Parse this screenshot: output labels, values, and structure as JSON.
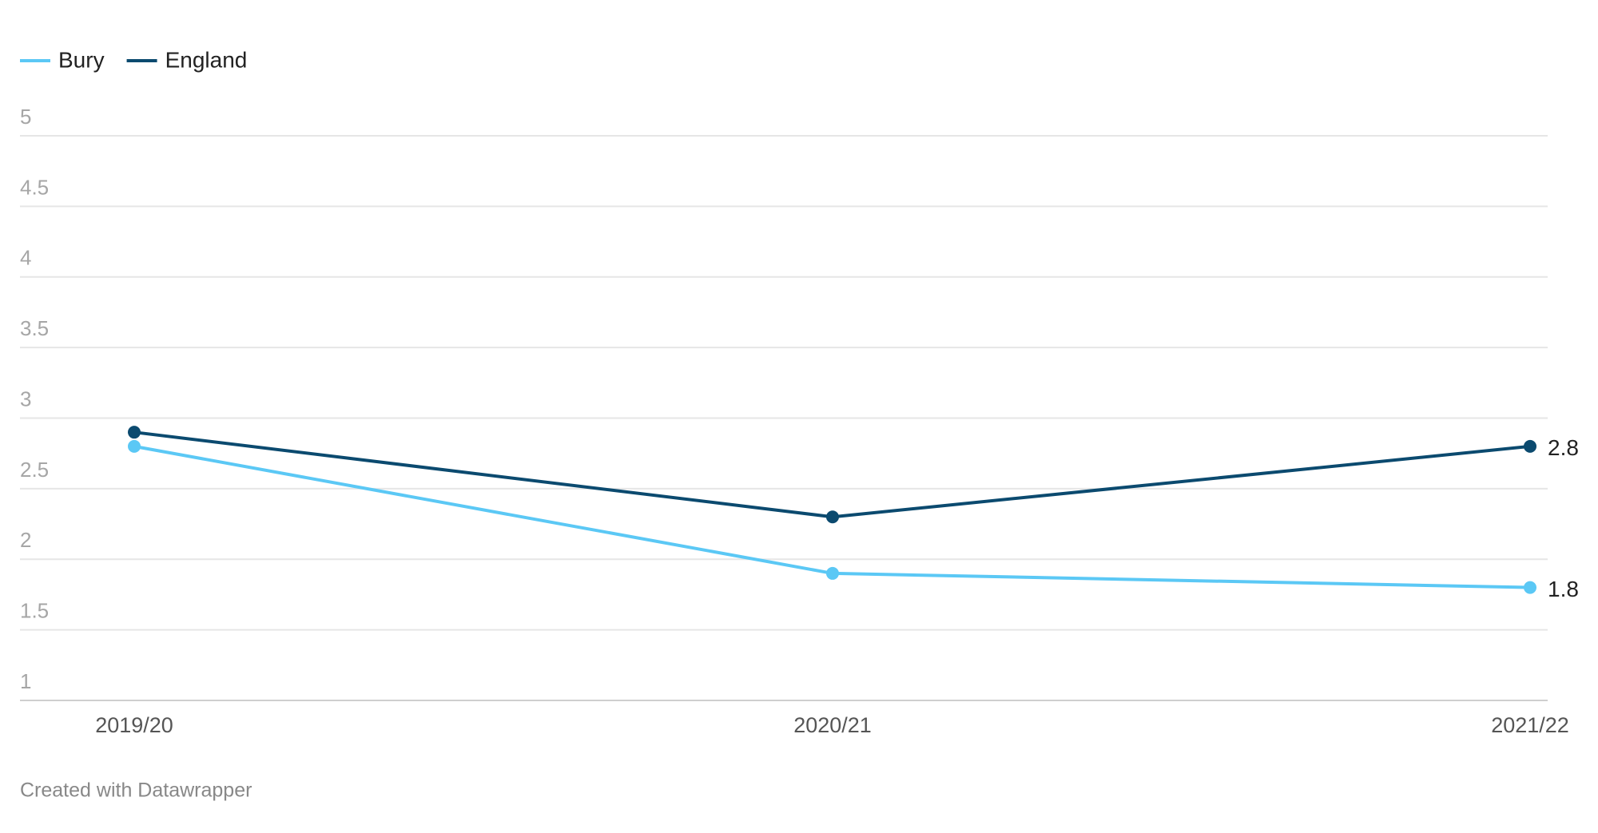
{
  "chart_data": {
    "type": "line",
    "categories": [
      "2019/20",
      "2020/21",
      "2021/22"
    ],
    "series": [
      {
        "name": "Bury",
        "color": "#5bc8f5",
        "values": [
          2.8,
          1.9,
          1.8
        ]
      },
      {
        "name": "England",
        "color": "#0b4a6f",
        "values": [
          2.9,
          2.3,
          2.8
        ]
      }
    ],
    "ylim": [
      1,
      5
    ],
    "yticks": [
      1,
      1.5,
      2,
      2.5,
      3,
      3.5,
      4,
      4.5,
      5
    ],
    "grid": true,
    "legend": "top-left",
    "footer": "Created with Datawrapper"
  }
}
